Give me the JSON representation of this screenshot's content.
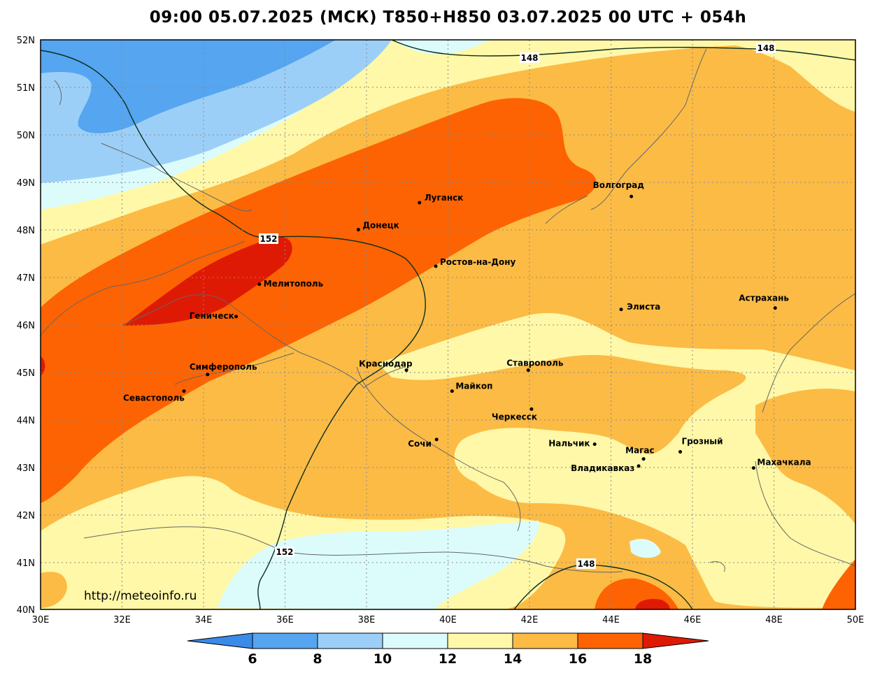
{
  "title": "09:00 05.07.2025 (МСК) T850+H850 03.07.2025 00 UTC + 054h",
  "url": "http://meteoinfo.ru",
  "lat_labels": [
    "52N",
    "51N",
    "50N",
    "49N",
    "48N",
    "47N",
    "46N",
    "45N",
    "44N",
    "43N",
    "42N",
    "41N",
    "40N"
  ],
  "lon_labels": [
    "30E",
    "32E",
    "34E",
    "36E",
    "38E",
    "40E",
    "42E",
    "44E",
    "46E",
    "48E",
    "50E"
  ],
  "isohypse_labels": [
    "148",
    "148",
    "152",
    "152",
    "148"
  ],
  "colorbar": {
    "ticks": [
      "6",
      "8",
      "10",
      "12",
      "14",
      "16",
      "18"
    ],
    "colors": [
      "#3a8ae8",
      "#55a5f0",
      "#9ccff8",
      "#dcfcfc",
      "#fff8a8",
      "#fcbb45",
      "#fd6302",
      "#de1a04"
    ]
  },
  "fill_colors": {
    "t6_8": "#55a5f0",
    "t8_10": "#9ccff8",
    "t10_12": "#dcfcfc",
    "t12_14": "#fff8a8",
    "t14_16": "#fcbb45",
    "t16_18": "#fd6302",
    "t18_plus": "#de1a04"
  },
  "cities": [
    {
      "name": "Волгоград",
      "lon": 44.5,
      "lat": 48.7
    },
    {
      "name": "Луганск",
      "lon": 39.3,
      "lat": 48.57
    },
    {
      "name": "Донецк",
      "lon": 37.8,
      "lat": 48.0
    },
    {
      "name": "Ростов-на-Дону",
      "lon": 39.7,
      "lat": 47.23
    },
    {
      "name": "Мелитополь",
      "lon": 35.37,
      "lat": 46.85
    },
    {
      "name": "Геническ",
      "lon": 34.8,
      "lat": 46.17
    },
    {
      "name": "Элиста",
      "lon": 44.25,
      "lat": 46.32
    },
    {
      "name": "Астрахань",
      "lon": 48.03,
      "lat": 46.35
    },
    {
      "name": "Симферополь",
      "lon": 34.1,
      "lat": 44.95
    },
    {
      "name": "Севастополь",
      "lon": 33.52,
      "lat": 44.6
    },
    {
      "name": "Краснодар",
      "lon": 38.98,
      "lat": 45.04
    },
    {
      "name": "Ставрополь",
      "lon": 41.97,
      "lat": 45.04
    },
    {
      "name": "Майкоп",
      "lon": 40.1,
      "lat": 44.6
    },
    {
      "name": "Черкесск",
      "lon": 42.05,
      "lat": 44.22
    },
    {
      "name": "Сочи",
      "lon": 39.72,
      "lat": 43.58
    },
    {
      "name": "Нальчик",
      "lon": 43.6,
      "lat": 43.48
    },
    {
      "name": "Магас",
      "lon": 44.8,
      "lat": 43.17
    },
    {
      "name": "Грозный",
      "lon": 45.7,
      "lat": 43.32
    },
    {
      "name": "Владикавказ",
      "lon": 44.68,
      "lat": 43.02
    },
    {
      "name": "Махачкала",
      "lon": 47.5,
      "lat": 42.98
    }
  ]
}
